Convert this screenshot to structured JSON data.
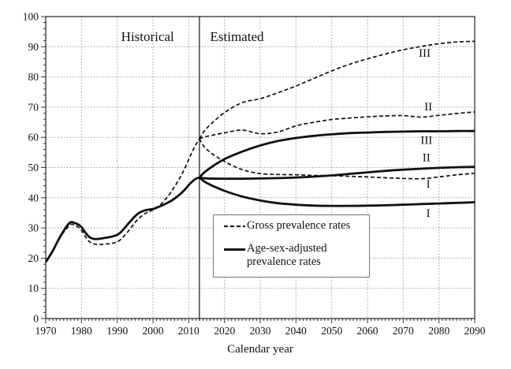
{
  "chart_data": {
    "type": "line",
    "title": "",
    "xlabel": "Calendar year",
    "ylabel": "",
    "xlim": [
      1970,
      2090
    ],
    "ylim": [
      0,
      100
    ],
    "x_ticks_labeled": [
      1970,
      1980,
      1990,
      2000,
      2010,
      2020,
      2030,
      2040,
      2050,
      2060,
      2070,
      2080,
      2090
    ],
    "y_ticks_labeled": [
      0,
      10,
      20,
      30,
      40,
      50,
      60,
      70,
      80,
      90,
      100
    ],
    "x_minor_step": 1,
    "y_minor_step": 2,
    "grid": "dotted gray lines at every 10 units (y) and every decade (x)",
    "grid_color": "#999999",
    "line_color": "#111111",
    "divider_year": 2013,
    "region_labels": [
      {
        "text": "Historical",
        "year": 1998.5,
        "value": 93.5
      },
      {
        "text": "Estimated",
        "year": 2023.5,
        "value": 93.5
      }
    ],
    "series": [
      {
        "id": "gross-historical",
        "name": "Gross prevalence rates (historical)",
        "line_style": "dashed",
        "x": [
          1970,
          1971,
          1972,
          1973,
          1974,
          1975,
          1976,
          1977,
          1978,
          1979,
          1980,
          1981,
          1982,
          1983,
          1984,
          1985,
          1986,
          1987,
          1988,
          1989,
          1990,
          1991,
          1992,
          1993,
          1994,
          1995,
          1996,
          1997,
          1998,
          1999,
          2000,
          2001,
          2002,
          2003,
          2004,
          2005,
          2006,
          2007,
          2008,
          2009,
          2010,
          2011,
          2012,
          2013
        ],
        "y": [
          19.0,
          20.8,
          22.7,
          24.8,
          26.8,
          28.6,
          30.0,
          31.2,
          31.0,
          30.3,
          29.2,
          27.3,
          25.7,
          24.9,
          24.6,
          24.5,
          24.6,
          24.7,
          24.8,
          25.0,
          25.4,
          26.2,
          27.4,
          28.8,
          30.3,
          31.8,
          33.1,
          34.1,
          34.9,
          35.4,
          36.0,
          36.7,
          37.6,
          38.8,
          40.2,
          41.8,
          43.6,
          45.5,
          47.6,
          50.0,
          52.7,
          55.3,
          57.6,
          59.5
        ]
      },
      {
        "id": "adjusted-historical",
        "name": "Age-sex-adjusted prevalence rates (historical)",
        "line_style": "solid",
        "x": [
          1970,
          1971,
          1972,
          1973,
          1974,
          1975,
          1976,
          1977,
          1978,
          1979,
          1980,
          1981,
          1982,
          1983,
          1984,
          1985,
          1986,
          1987,
          1988,
          1989,
          1990,
          1991,
          1992,
          1993,
          1994,
          1995,
          1996,
          1997,
          1998,
          1999,
          2000,
          2001,
          2002,
          2003,
          2004,
          2005,
          2006,
          2007,
          2008,
          2009,
          2010,
          2011,
          2012,
          2013
        ],
        "y": [
          18.7,
          20.5,
          22.5,
          24.8,
          27.0,
          29.0,
          30.8,
          31.9,
          31.7,
          31.2,
          30.3,
          28.6,
          27.2,
          26.5,
          26.3,
          26.4,
          26.6,
          26.8,
          27.0,
          27.3,
          27.7,
          28.6,
          29.9,
          31.3,
          32.6,
          33.9,
          34.9,
          35.5,
          35.9,
          36.1,
          36.3,
          36.7,
          37.2,
          37.7,
          38.3,
          38.9,
          39.7,
          40.6,
          41.6,
          42.8,
          44.2,
          45.4,
          46.3,
          46.7
        ]
      },
      {
        "id": "gross-III",
        "name": "Gross prevalence rates, scenario III",
        "line_style": "dashed",
        "scenario": "III",
        "x": [
          2013,
          2015,
          2020,
          2025,
          2030,
          2035,
          2040,
          2045,
          2050,
          2055,
          2060,
          2065,
          2070,
          2075,
          2080,
          2085,
          2090
        ],
        "y": [
          59.5,
          63.0,
          68.2,
          71.5,
          72.8,
          74.8,
          77.0,
          79.5,
          82.0,
          84.2,
          86.0,
          87.6,
          89.0,
          90.1,
          91.0,
          91.6,
          91.8
        ]
      },
      {
        "id": "gross-II",
        "name": "Gross prevalence rates, scenario II",
        "line_style": "dashed",
        "scenario": "II",
        "x": [
          2013,
          2015,
          2020,
          2025,
          2030,
          2035,
          2040,
          2045,
          2050,
          2055,
          2060,
          2065,
          2070,
          2075,
          2080,
          2085,
          2090
        ],
        "y": [
          59.5,
          60.3,
          61.5,
          62.4,
          61.2,
          61.8,
          63.8,
          65.0,
          65.9,
          66.4,
          66.8,
          67.1,
          67.2,
          66.7,
          67.3,
          67.9,
          68.4
        ]
      },
      {
        "id": "gross-I",
        "name": "Gross prevalence rates, scenario I",
        "line_style": "dashed",
        "scenario": "I",
        "x": [
          2013,
          2015,
          2020,
          2025,
          2030,
          2035,
          2040,
          2045,
          2050,
          2055,
          2060,
          2065,
          2070,
          2075,
          2080,
          2085,
          2090
        ],
        "y": [
          59.5,
          56.0,
          52.0,
          49.3,
          48.0,
          47.7,
          47.6,
          47.4,
          47.3,
          47.1,
          46.9,
          46.6,
          46.4,
          46.3,
          46.9,
          47.6,
          48.1
        ]
      },
      {
        "id": "adjusted-III",
        "name": "Age-sex-adjusted prevalence rates, scenario III",
        "line_style": "solid",
        "scenario": "III",
        "x": [
          2013,
          2015,
          2020,
          2025,
          2030,
          2035,
          2040,
          2045,
          2050,
          2055,
          2060,
          2065,
          2070,
          2075,
          2080,
          2085,
          2090
        ],
        "y": [
          46.7,
          49.0,
          52.8,
          55.3,
          57.3,
          58.8,
          59.8,
          60.5,
          61.0,
          61.4,
          61.6,
          61.8,
          61.9,
          62.0,
          62.0,
          62.1,
          62.1
        ]
      },
      {
        "id": "adjusted-II",
        "name": "Age-sex-adjusted prevalence rates, scenario II",
        "line_style": "solid",
        "scenario": "II",
        "x": [
          2013,
          2015,
          2020,
          2025,
          2030,
          2035,
          2040,
          2045,
          2050,
          2055,
          2060,
          2065,
          2070,
          2075,
          2080,
          2085,
          2090
        ],
        "y": [
          46.7,
          46.4,
          46.3,
          46.3,
          46.4,
          46.5,
          46.7,
          47.0,
          47.4,
          47.9,
          48.4,
          48.9,
          49.3,
          49.6,
          49.9,
          50.1,
          50.2
        ]
      },
      {
        "id": "adjusted-I",
        "name": "Age-sex-adjusted prevalence rates, scenario I",
        "line_style": "solid",
        "scenario": "I",
        "x": [
          2013,
          2015,
          2020,
          2025,
          2030,
          2035,
          2040,
          2045,
          2050,
          2055,
          2060,
          2065,
          2070,
          2075,
          2080,
          2085,
          2090
        ],
        "y": [
          46.7,
          44.9,
          42.3,
          40.4,
          39.1,
          38.2,
          37.7,
          37.4,
          37.3,
          37.3,
          37.4,
          37.5,
          37.7,
          37.9,
          38.1,
          38.3,
          38.5
        ]
      }
    ],
    "curve_labels": [
      {
        "text": "III",
        "series": "gross-III",
        "year": 2076,
        "value": 88.0
      },
      {
        "text": "II",
        "series": "gross-II",
        "year": 2077,
        "value": 70.2
      },
      {
        "text": "III",
        "series": "adjusted-III",
        "year": 2076.5,
        "value": 59.2
      },
      {
        "text": "II",
        "series": "adjusted-II",
        "year": 2076.5,
        "value": 53.4
      },
      {
        "text": "I",
        "series": "gross-I",
        "year": 2077,
        "value": 44.6
      },
      {
        "text": "I",
        "series": "adjusted-I",
        "year": 2077,
        "value": 35.0
      }
    ],
    "legend": {
      "position": "inside lower-middle",
      "items": [
        {
          "id": "gross",
          "style": "dashed",
          "label": "Gross prevalence rates"
        },
        {
          "id": "adjusted",
          "style": "solid",
          "label_line1": "Age-sex-adjusted",
          "label_line2": "prevalence rates"
        }
      ]
    }
  }
}
